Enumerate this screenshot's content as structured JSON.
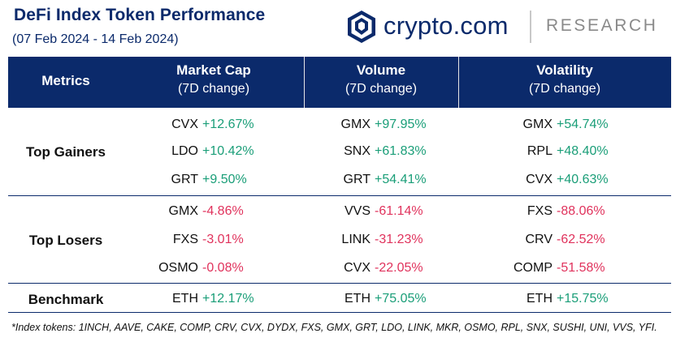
{
  "title": "DeFi Index Token Performance",
  "subtitle": "(07 Feb 2024 - 14 Feb 2024)",
  "logo": {
    "wordmark": "crypto.com",
    "division": "RESEARCH",
    "mark_icon": "crypto-com-lion-shield-icon"
  },
  "colors": {
    "header_bg": "#0b2a6b",
    "positive": "#1a9e78",
    "negative": "#e0325c"
  },
  "columns": {
    "metrics": {
      "label": "Metrics"
    },
    "market_cap": {
      "label": "Market Cap",
      "sub": "(7D change)"
    },
    "volume": {
      "label": "Volume",
      "sub": "(7D change)"
    },
    "volatility": {
      "label": "Volatility",
      "sub": "(7D change)"
    }
  },
  "sections": {
    "gainers": {
      "label": "Top Gainers",
      "rows": [
        {
          "market_cap": {
            "token": "CVX",
            "change": "+12.67%"
          },
          "volume": {
            "token": "GMX",
            "change": "+97.95%"
          },
          "volatility": {
            "token": "GMX",
            "change": "+54.74%"
          }
        },
        {
          "market_cap": {
            "token": "LDO",
            "change": "+10.42%"
          },
          "volume": {
            "token": "SNX",
            "change": "+61.83%"
          },
          "volatility": {
            "token": "RPL",
            "change": "+48.40%"
          }
        },
        {
          "market_cap": {
            "token": "GRT",
            "change": "+9.50%"
          },
          "volume": {
            "token": "GRT",
            "change": "+54.41%"
          },
          "volatility": {
            "token": "CVX",
            "change": "+40.63%"
          }
        }
      ]
    },
    "losers": {
      "label": "Top Losers",
      "rows": [
        {
          "market_cap": {
            "token": "GMX",
            "change": "-4.86%"
          },
          "volume": {
            "token": "VVS",
            "change": "-61.14%"
          },
          "volatility": {
            "token": "FXS",
            "change": "-88.06%"
          }
        },
        {
          "market_cap": {
            "token": "FXS",
            "change": "-3.01%"
          },
          "volume": {
            "token": "LINK",
            "change": "-31.23%"
          },
          "volatility": {
            "token": "CRV",
            "change": "-62.52%"
          }
        },
        {
          "market_cap": {
            "token": "OSMO",
            "change": "-0.08%"
          },
          "volume": {
            "token": "CVX",
            "change": "-22.05%"
          },
          "volatility": {
            "token": "COMP",
            "change": "-51.58%"
          }
        }
      ]
    },
    "benchmark": {
      "label": "Benchmark",
      "rows": [
        {
          "market_cap": {
            "token": "ETH",
            "change": "+12.17%"
          },
          "volume": {
            "token": "ETH",
            "change": "+75.05%"
          },
          "volatility": {
            "token": "ETH",
            "change": "+15.75%"
          }
        }
      ]
    }
  },
  "footnote": "*Index tokens: 1INCH, AAVE, CAKE, COMP, CRV, CVX, DYDX, FXS, GMX, GRT, LDO, LINK, MKR, OSMO, RPL, SNX, SUSHI, UNI, VVS, YFI."
}
